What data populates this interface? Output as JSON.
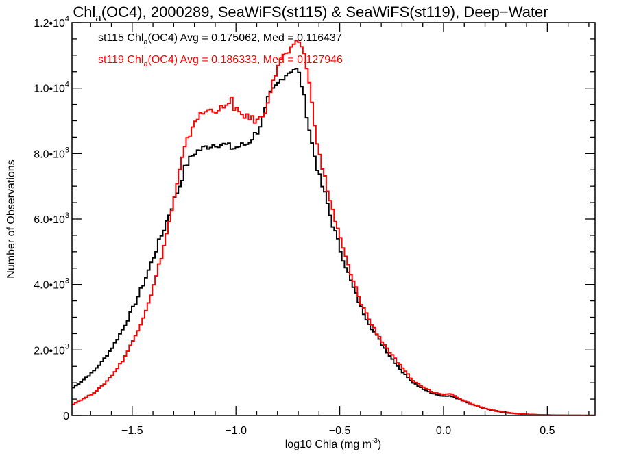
{
  "chart_data": {
    "type": "line",
    "title": {
      "prefix": "Chl",
      "sub": "a",
      "suffix": "(OC4), 2000289, SeaWiFS(st115) & SeaWiFS(st119), Deep−Water"
    },
    "xlabel": {
      "main": "log10 Chla (mg m",
      "sup": "-3",
      "close": ")"
    },
    "ylabel": "Number of Observations",
    "xlim": [
      -1.79,
      0.73
    ],
    "ylim": [
      0,
      12000
    ],
    "grid": false,
    "legend_position": "top-left",
    "x_ticks": [
      {
        "value": -1.5,
        "label": "−1.5"
      },
      {
        "value": -1.0,
        "label": "−1.0"
      },
      {
        "value": -0.5,
        "label": "−0.5"
      },
      {
        "value": 0.0,
        "label": "0.0"
      },
      {
        "value": 0.5,
        "label": "0.5"
      }
    ],
    "x_minor_step": 0.1,
    "y_ticks": [
      {
        "value": 0,
        "mant": "0",
        "exp": ""
      },
      {
        "value": 2000,
        "mant": "2.0•10",
        "exp": "3"
      },
      {
        "value": 4000,
        "mant": "4.0•10",
        "exp": "3"
      },
      {
        "value": 6000,
        "mant": "6.0•10",
        "exp": "3"
      },
      {
        "value": 8000,
        "mant": "8.0•10",
        "exp": "3"
      },
      {
        "value": 10000,
        "mant": "1.0•10",
        "exp": "4"
      },
      {
        "value": 12000,
        "mant": "1.2•10",
        "exp": "4"
      }
    ],
    "y_minor_step": 500,
    "series": [
      {
        "name": "st115",
        "color": "#000000",
        "legend": {
          "a": "st115 Chl",
          "sub": "a",
          "b": "(OC4) Avg = 0.175062, Med = 0.116437"
        },
        "x": [
          -1.79,
          -1.75,
          -1.7,
          -1.65,
          -1.6,
          -1.55,
          -1.5,
          -1.45,
          -1.4,
          -1.35,
          -1.3,
          -1.27,
          -1.25,
          -1.22,
          -1.2,
          -1.15,
          -1.1,
          -1.05,
          -1.02,
          -1.0,
          -0.95,
          -0.9,
          -0.87,
          -0.85,
          -0.82,
          -0.8,
          -0.78,
          -0.76,
          -0.74,
          -0.72,
          -0.7,
          -0.68,
          -0.66,
          -0.64,
          -0.62,
          -0.6,
          -0.57,
          -0.55,
          -0.5,
          -0.45,
          -0.4,
          -0.35,
          -0.3,
          -0.25,
          -0.2,
          -0.15,
          -0.1,
          -0.05,
          0.0,
          0.03,
          0.05,
          0.1,
          0.15,
          0.2,
          0.25,
          0.3,
          0.35,
          0.4,
          0.45,
          0.5,
          0.55,
          0.6,
          0.65,
          0.73
        ],
        "y": [
          850,
          1050,
          1300,
          1650,
          2100,
          2650,
          3300,
          4050,
          4900,
          5750,
          6650,
          7150,
          7600,
          7900,
          8050,
          8200,
          8300,
          8250,
          8150,
          8200,
          8300,
          8700,
          9200,
          9700,
          10000,
          10150,
          10350,
          10450,
          10550,
          10600,
          10400,
          9800,
          9000,
          8300,
          7700,
          7200,
          6600,
          6050,
          5000,
          4050,
          3250,
          2650,
          2150,
          1700,
          1300,
          1000,
          800,
          650,
          580,
          600,
          550,
          420,
          300,
          200,
          130,
          80,
          50,
          30,
          20,
          12,
          8,
          5,
          3,
          2
        ]
      },
      {
        "name": "st119",
        "color": "#ff0000",
        "legend": {
          "a": "st119 Chl",
          "sub": "a",
          "b": "(OC4) Avg = 0.186333, Med = 0.127946"
        },
        "x": [
          -1.79,
          -1.75,
          -1.7,
          -1.65,
          -1.6,
          -1.55,
          -1.5,
          -1.45,
          -1.4,
          -1.35,
          -1.3,
          -1.27,
          -1.25,
          -1.22,
          -1.2,
          -1.15,
          -1.1,
          -1.05,
          -1.03,
          -1.02,
          -1.0,
          -0.95,
          -0.9,
          -0.87,
          -0.85,
          -0.82,
          -0.8,
          -0.78,
          -0.76,
          -0.74,
          -0.72,
          -0.7,
          -0.68,
          -0.66,
          -0.64,
          -0.62,
          -0.6,
          -0.57,
          -0.55,
          -0.5,
          -0.45,
          -0.4,
          -0.35,
          -0.3,
          -0.25,
          -0.2,
          -0.15,
          -0.1,
          -0.05,
          0.0,
          0.03,
          0.05,
          0.1,
          0.15,
          0.2,
          0.25,
          0.3,
          0.35,
          0.4,
          0.45,
          0.5,
          0.55,
          0.6,
          0.65,
          0.73
        ],
        "y": [
          350,
          480,
          650,
          900,
          1250,
          1700,
          2300,
          3050,
          4000,
          5250,
          6700,
          7700,
          8200,
          8750,
          9050,
          9300,
          9350,
          9400,
          9850,
          9250,
          9300,
          9100,
          9000,
          9200,
          9700,
          10300,
          10800,
          10950,
          11050,
          11150,
          11300,
          11450,
          11100,
          10500,
          9500,
          8600,
          7800,
          7050,
          6500,
          5300,
          4250,
          3400,
          2750,
          2250,
          1800,
          1400,
          1050,
          850,
          700,
          650,
          680,
          580,
          430,
          310,
          210,
          140,
          90,
          55,
          35,
          22,
          14,
          9,
          6,
          4,
          3
        ]
      }
    ]
  }
}
